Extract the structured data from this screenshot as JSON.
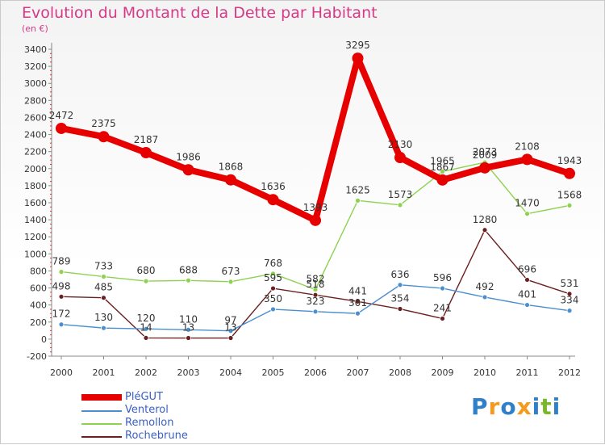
{
  "chart_data": {
    "type": "line",
    "title": "Evolution du Montant de la Dette par Habitant",
    "subtitle": "(en €)",
    "xlabel": "",
    "ylabel": "",
    "categories": [
      "2000",
      "2001",
      "2002",
      "2003",
      "2004",
      "2005",
      "2006",
      "2007",
      "2008",
      "2009",
      "2010",
      "2011",
      "2012"
    ],
    "ylim": [
      -200,
      3400
    ],
    "yticks": [
      -200,
      0,
      200,
      400,
      600,
      800,
      1000,
      1200,
      1400,
      1600,
      1800,
      2000,
      2200,
      2400,
      2600,
      2800,
      3000,
      3200,
      3400
    ],
    "grid": false,
    "legend_position": "bottom-left",
    "series": [
      {
        "name": "PléGUT",
        "color": "#e60000",
        "values": [
          2472,
          2375,
          2187,
          1986,
          1868,
          1636,
          1393,
          3295,
          2130,
          1867,
          2009,
          2108,
          1943
        ],
        "labels": [
          "2472",
          "2375",
          "2187",
          "1986",
          "1868",
          "1636",
          "1393",
          "3295",
          "2130",
          "1867",
          "2009",
          "2108",
          "1943"
        ]
      },
      {
        "name": "Venterol",
        "color": "#4b8fcf",
        "values": [
          172,
          130,
          120,
          110,
          97,
          350,
          323,
          301,
          636,
          596,
          492,
          401,
          334
        ],
        "labels": [
          "172",
          "130",
          "120",
          "110",
          "97",
          "350",
          "323",
          "301",
          "636",
          "596",
          "492",
          "401",
          "334"
        ]
      },
      {
        "name": "Remollon",
        "color": "#8ed250",
        "values": [
          789,
          733,
          680,
          688,
          673,
          768,
          582,
          1625,
          1573,
          1965,
          2073,
          1470,
          1568
        ],
        "labels": [
          "789",
          "733",
          "680",
          "688",
          "673",
          "768",
          "582",
          "1625",
          "1573",
          "1965",
          "2073",
          "1470",
          "1568"
        ]
      },
      {
        "name": "Rochebrune",
        "color": "#6b1f1f",
        "values": [
          498,
          485,
          14,
          13,
          13,
          595,
          518,
          441,
          354,
          241,
          1280,
          696,
          531
        ],
        "labels": [
          "498",
          "485",
          "14",
          "13",
          "13",
          "595",
          "518",
          "441",
          "354",
          "241",
          "1280",
          "696",
          "531"
        ]
      }
    ]
  },
  "logo": {
    "text": "Proxiti",
    "letters": [
      {
        "ch": "P",
        "color": "#2f80c8"
      },
      {
        "ch": "r",
        "color": "#f39a1f"
      },
      {
        "ch": "o",
        "color": "#2f80c8"
      },
      {
        "ch": "x",
        "color": "#f39a1f"
      },
      {
        "ch": "i",
        "color": "#2f80c8"
      },
      {
        "ch": "t",
        "color": "#78b82a"
      },
      {
        "ch": "i",
        "color": "#2f80c8"
      }
    ]
  }
}
